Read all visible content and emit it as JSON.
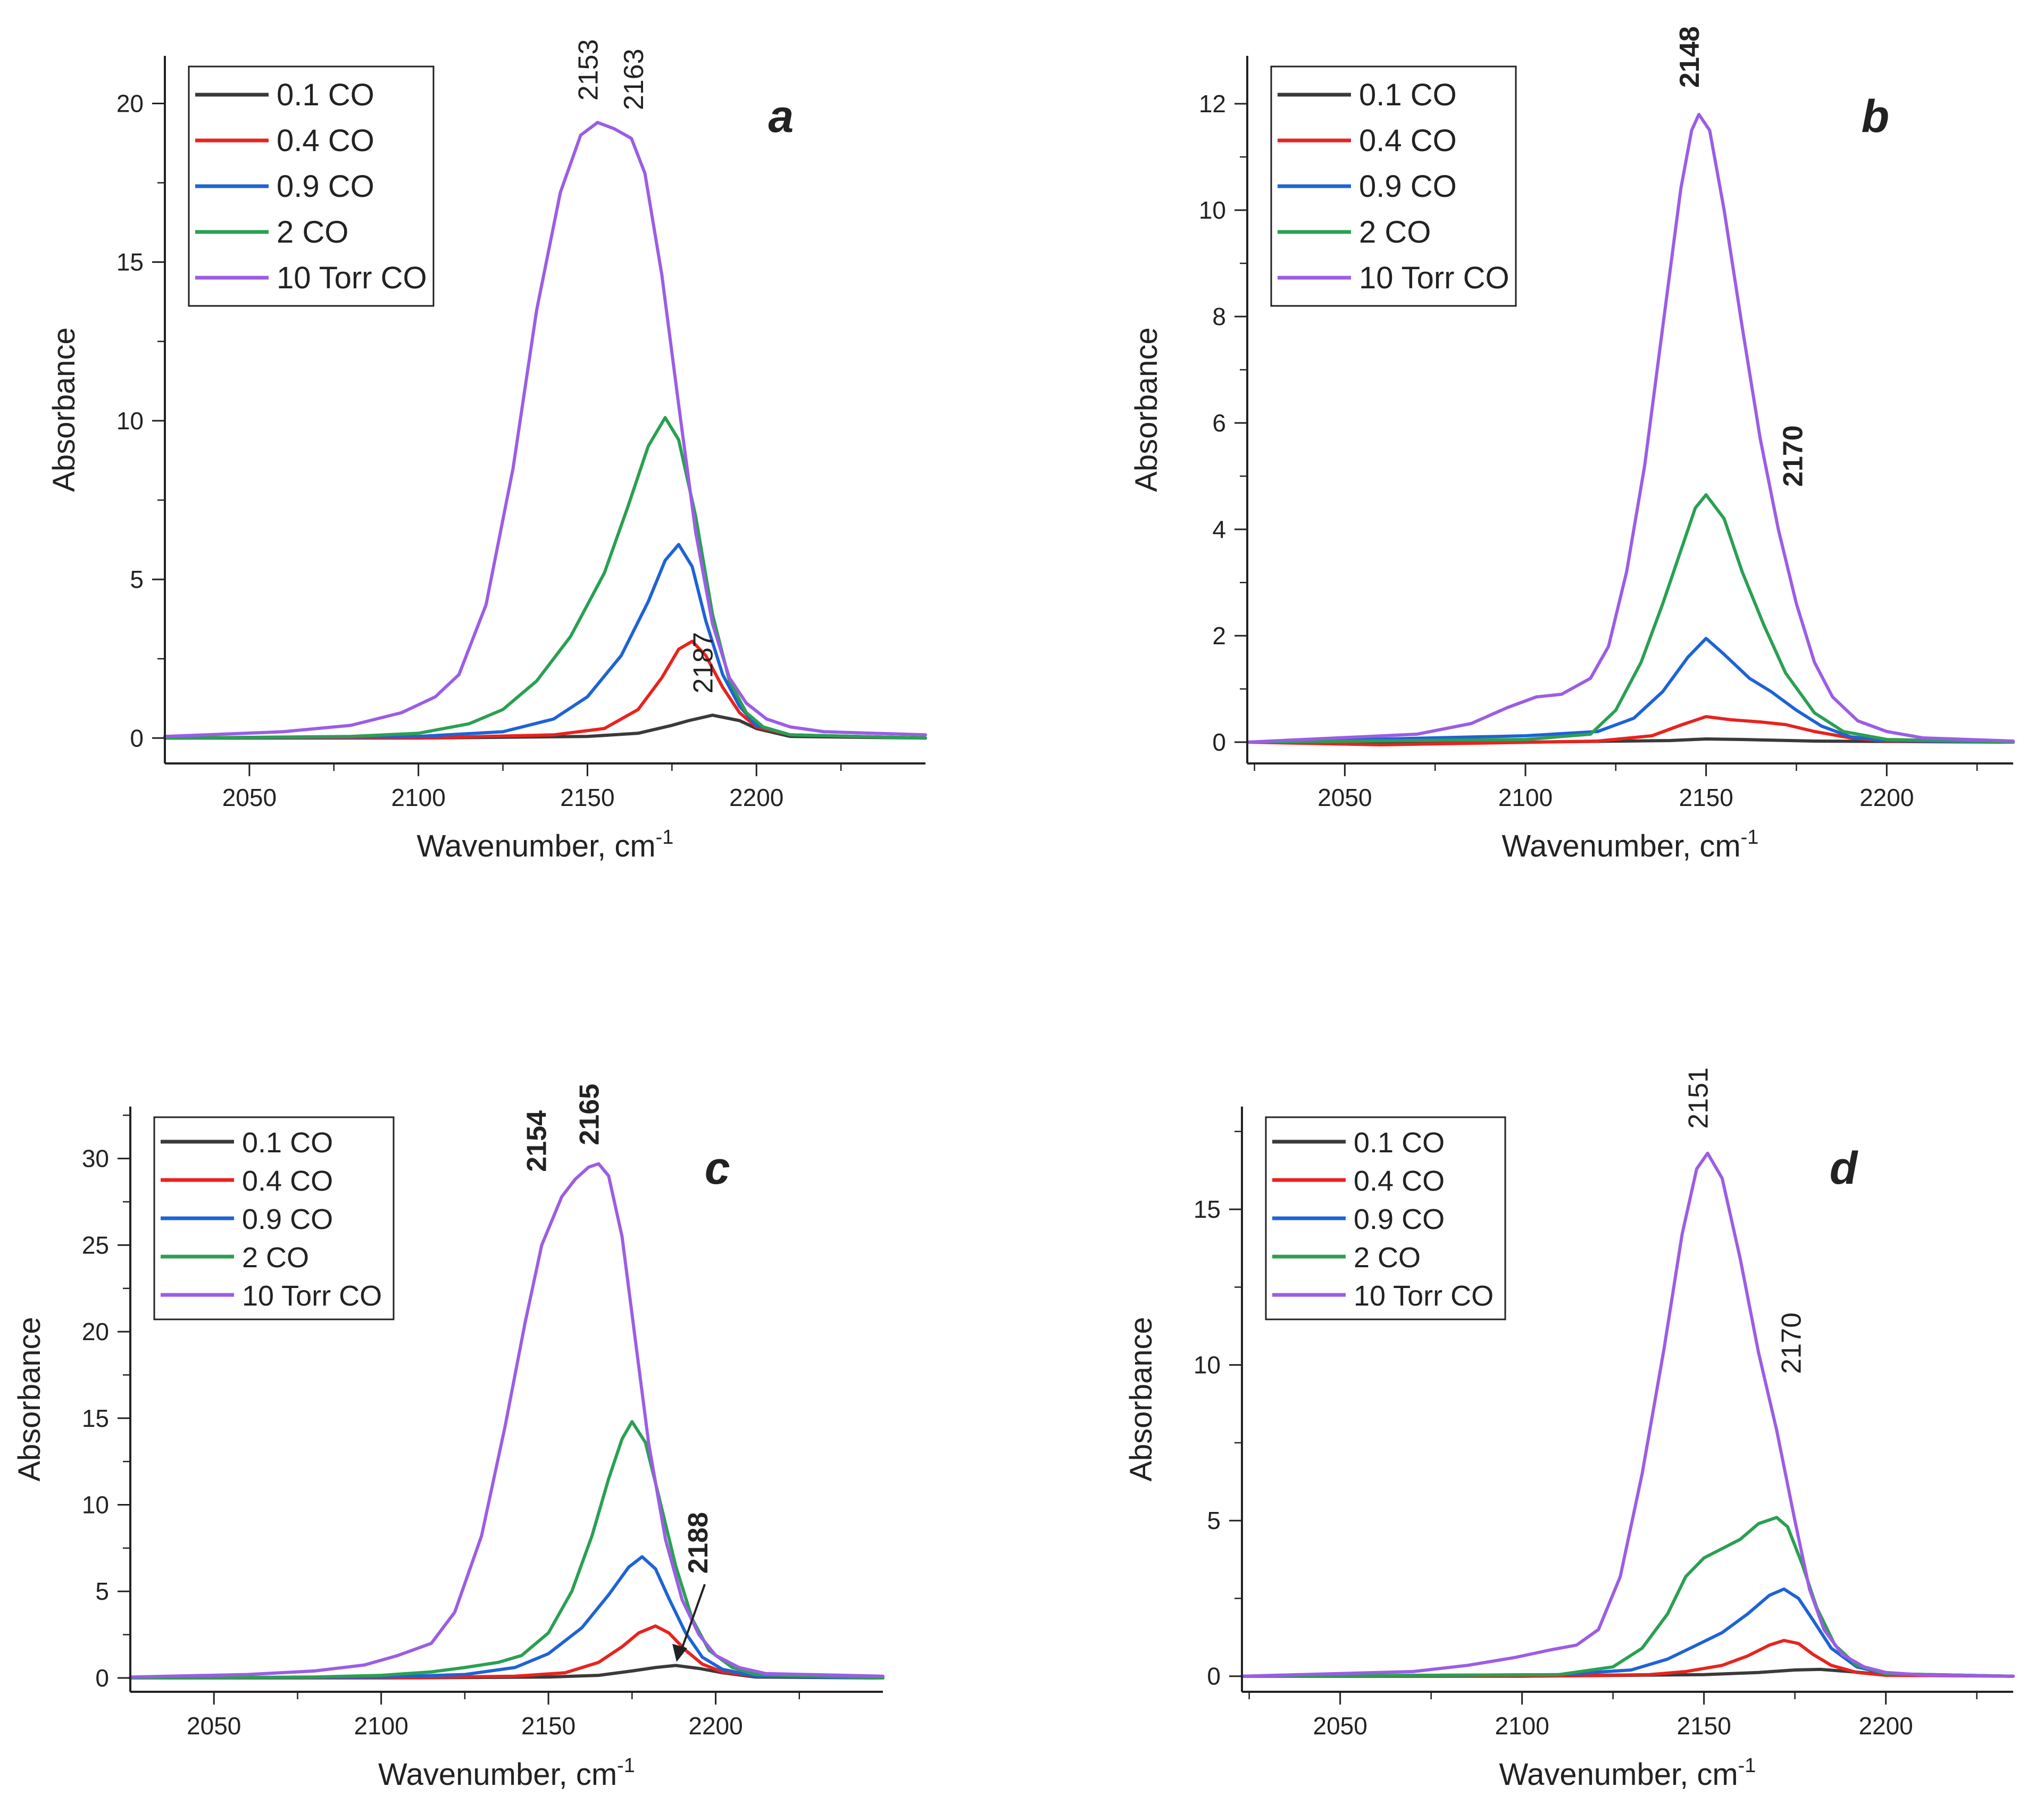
{
  "chart_data": [
    {
      "id": "a",
      "type": "line",
      "panel_label": "a",
      "xlabel": "Wavenumber, cm",
      "xlabel_sup": "-1",
      "ylabel": "Absorbance",
      "xlim": [
        2025,
        2250
      ],
      "ylim": [
        -0.8,
        21.5
      ],
      "xticks": [
        2050,
        2100,
        2150,
        2200
      ],
      "yticks": [
        0,
        5,
        10,
        15,
        20
      ],
      "legend": [
        "0.1 CO",
        "0.4 CO",
        "0.9 CO",
        "2 CO",
        "10 Torr CO"
      ],
      "series": [
        {
          "name": "0.1 CO",
          "color": "#3a3a3a",
          "x": [
            2025,
            2100,
            2150,
            2165,
            2175,
            2180,
            2187,
            2195,
            2200,
            2210,
            2250
          ],
          "y": [
            0,
            0,
            0.05,
            0.15,
            0.4,
            0.55,
            0.72,
            0.55,
            0.3,
            0.05,
            0
          ]
        },
        {
          "name": "0.4 CO",
          "color": "#e8231e",
          "x": [
            2025,
            2100,
            2140,
            2155,
            2165,
            2172,
            2177,
            2181,
            2185,
            2190,
            2195,
            2200,
            2210,
            2250
          ],
          "y": [
            0,
            0,
            0.1,
            0.3,
            0.9,
            1.9,
            2.8,
            3.05,
            2.6,
            1.6,
            0.8,
            0.35,
            0.1,
            0
          ]
        },
        {
          "name": "0.9 CO",
          "color": "#1e63d6",
          "x": [
            2025,
            2100,
            2125,
            2140,
            2150,
            2160,
            2168,
            2173,
            2177,
            2181,
            2185,
            2190,
            2195,
            2200,
            2210,
            2250
          ],
          "y": [
            0,
            0.05,
            0.2,
            0.6,
            1.3,
            2.6,
            4.3,
            5.6,
            6.1,
            5.4,
            3.7,
            2.0,
            1.0,
            0.4,
            0.1,
            0
          ]
        },
        {
          "name": "2 CO",
          "color": "#2aa052",
          "x": [
            2025,
            2080,
            2100,
            2115,
            2125,
            2135,
            2145,
            2155,
            2162,
            2168,
            2173,
            2177,
            2182,
            2187,
            2192,
            2197,
            2202,
            2210,
            2250
          ],
          "y": [
            0,
            0.05,
            0.15,
            0.45,
            0.9,
            1.8,
            3.2,
            5.2,
            7.3,
            9.2,
            10.1,
            9.4,
            7.0,
            3.9,
            1.8,
            0.8,
            0.35,
            0.1,
            0
          ]
        },
        {
          "name": "10 Torr CO",
          "color": "#9b5de5",
          "x": [
            2025,
            2060,
            2080,
            2095,
            2105,
            2112,
            2120,
            2128,
            2135,
            2142,
            2148,
            2153,
            2158,
            2163,
            2167,
            2172,
            2177,
            2182,
            2187,
            2192,
            2197,
            2203,
            2210,
            2220,
            2250
          ],
          "y": [
            0.05,
            0.2,
            0.4,
            0.8,
            1.3,
            2.0,
            4.2,
            8.5,
            13.5,
            17.2,
            19.0,
            19.4,
            19.2,
            18.9,
            17.8,
            14.6,
            10.5,
            6.5,
            3.6,
            1.9,
            1.1,
            0.6,
            0.35,
            0.2,
            0.1
          ]
        }
      ],
      "annotations": [
        {
          "text": "2153",
          "x": 2153,
          "y": 19.5
        },
        {
          "text": "2163",
          "x": 2163,
          "y": 19.2
        },
        {
          "text": "2187",
          "x": 2187,
          "y": 0.9
        }
      ]
    },
    {
      "id": "b",
      "type": "line",
      "panel_label": "b",
      "xlabel": "Wavenumber, cm",
      "xlabel_sup": "-1",
      "ylabel": "Absorbance",
      "xlim": [
        2023,
        2235
      ],
      "ylim": [
        -0.4,
        12.9
      ],
      "xticks": [
        2050,
        2100,
        2150,
        2200
      ],
      "yticks": [
        0,
        2,
        4,
        6,
        8,
        10,
        12
      ],
      "legend": [
        "0.1 CO",
        "0.4 CO",
        "0.9 CO",
        "2 CO",
        "10 Torr CO"
      ],
      "series": [
        {
          "name": "0.1 CO",
          "color": "#3a3a3a",
          "x": [
            2023,
            2100,
            2140,
            2150,
            2160,
            2180,
            2235
          ],
          "y": [
            0,
            0,
            0.03,
            0.06,
            0.05,
            0.02,
            0
          ]
        },
        {
          "name": "0.4 CO",
          "color": "#e8231e",
          "x": [
            2023,
            2060,
            2120,
            2135,
            2143,
            2150,
            2157,
            2165,
            2172,
            2180,
            2190,
            2200,
            2235
          ],
          "y": [
            0,
            -0.05,
            0.02,
            0.12,
            0.32,
            0.48,
            0.42,
            0.38,
            0.33,
            0.2,
            0.08,
            0.02,
            0
          ]
        },
        {
          "name": "0.9 CO",
          "color": "#1e63d6",
          "x": [
            2023,
            2100,
            2120,
            2130,
            2138,
            2145,
            2150,
            2155,
            2162,
            2168,
            2175,
            2182,
            2190,
            2200,
            2235
          ],
          "y": [
            0,
            0.12,
            0.2,
            0.45,
            0.95,
            1.6,
            1.95,
            1.65,
            1.2,
            0.95,
            0.6,
            0.3,
            0.1,
            0.03,
            0
          ]
        },
        {
          "name": "2 CO",
          "color": "#2aa052",
          "x": [
            2023,
            2100,
            2118,
            2125,
            2132,
            2138,
            2143,
            2147,
            2150,
            2155,
            2160,
            2166,
            2172,
            2180,
            2188,
            2200,
            2235
          ],
          "y": [
            0,
            0.05,
            0.15,
            0.6,
            1.5,
            2.6,
            3.6,
            4.4,
            4.65,
            4.2,
            3.2,
            2.2,
            1.3,
            0.55,
            0.2,
            0.05,
            0
          ]
        },
        {
          "name": "10 Torr CO",
          "color": "#9b5de5",
          "x": [
            2023,
            2070,
            2085,
            2095,
            2103,
            2110,
            2118,
            2123,
            2128,
            2133,
            2138,
            2143,
            2146,
            2148,
            2151,
            2155,
            2160,
            2165,
            2170,
            2175,
            2180,
            2185,
            2192,
            2200,
            2210,
            2235
          ],
          "y": [
            0,
            0.15,
            0.35,
            0.65,
            0.85,
            0.9,
            1.2,
            1.8,
            3.2,
            5.2,
            7.8,
            10.4,
            11.5,
            11.8,
            11.5,
            10.0,
            7.8,
            5.7,
            4.0,
            2.6,
            1.5,
            0.85,
            0.4,
            0.2,
            0.08,
            0.02
          ]
        }
      ],
      "annotations": [
        {
          "text": "2148",
          "x": 2148,
          "y": 11.9
        },
        {
          "text": "2170",
          "x": 2170,
          "y": 3.6
        }
      ]
    },
    {
      "id": "c",
      "type": "line",
      "panel_label": "c",
      "xlabel": "Wavenumber, cm",
      "xlabel_sup": "-1",
      "ylabel": "Absorbance",
      "xlim": [
        2025,
        2250
      ],
      "ylim": [
        -0.8,
        33
      ],
      "xticks": [
        2050,
        2100,
        2150,
        2200
      ],
      "yticks": [
        0,
        5,
        10,
        15,
        20,
        25,
        30
      ],
      "legend": [
        "0.1 CO",
        "0.4 CO",
        "0.9 CO",
        "2 CO",
        "10 Torr CO"
      ],
      "series": [
        {
          "name": "0.1 CO",
          "color": "#3a3a3a",
          "x": [
            2025,
            2100,
            2150,
            2165,
            2175,
            2182,
            2188,
            2195,
            2202,
            2212,
            2250
          ],
          "y": [
            0,
            0,
            0.05,
            0.15,
            0.4,
            0.6,
            0.72,
            0.55,
            0.3,
            0.05,
            0
          ]
        },
        {
          "name": "0.4 CO",
          "color": "#e8231e",
          "x": [
            2025,
            2100,
            2140,
            2155,
            2165,
            2172,
            2177,
            2182,
            2186,
            2191,
            2196,
            2202,
            2212,
            2250
          ],
          "y": [
            0,
            0,
            0.1,
            0.3,
            0.9,
            1.8,
            2.6,
            3.0,
            2.6,
            1.6,
            0.8,
            0.35,
            0.1,
            0
          ]
        },
        {
          "name": "0.9 CO",
          "color": "#1e63d6",
          "x": [
            2025,
            2100,
            2125,
            2140,
            2150,
            2160,
            2168,
            2174,
            2178,
            2182,
            2186,
            2191,
            2196,
            2202,
            2212,
            2250
          ],
          "y": [
            0,
            0.05,
            0.2,
            0.6,
            1.4,
            2.9,
            4.8,
            6.4,
            7.0,
            6.3,
            4.6,
            2.6,
            1.2,
            0.5,
            0.1,
            0
          ]
        },
        {
          "name": "2 CO",
          "color": "#2aa052",
          "x": [
            2025,
            2080,
            2100,
            2115,
            2125,
            2135,
            2142,
            2150,
            2157,
            2163,
            2168,
            2172,
            2175,
            2179,
            2183,
            2188,
            2193,
            2198,
            2205,
            2212,
            2250
          ],
          "y": [
            0,
            0.05,
            0.15,
            0.35,
            0.6,
            0.9,
            1.3,
            2.6,
            5.0,
            8.2,
            11.5,
            13.8,
            14.8,
            13.6,
            10.5,
            6.5,
            3.4,
            1.6,
            0.6,
            0.2,
            0
          ]
        },
        {
          "name": "10 Torr CO",
          "color": "#9b5de5",
          "x": [
            2025,
            2060,
            2080,
            2095,
            2105,
            2115,
            2122,
            2130,
            2137,
            2143,
            2148,
            2154,
            2158,
            2162,
            2165,
            2168,
            2172,
            2176,
            2180,
            2185,
            2190,
            2195,
            2200,
            2207,
            2215,
            2250
          ],
          "y": [
            0.05,
            0.2,
            0.4,
            0.75,
            1.3,
            2.0,
            3.8,
            8.2,
            14.5,
            20.5,
            25.0,
            27.8,
            28.8,
            29.5,
            29.7,
            29.0,
            25.5,
            19.5,
            13.5,
            8.0,
            4.5,
            2.5,
            1.3,
            0.6,
            0.25,
            0.1
          ]
        }
      ],
      "annotations": [
        {
          "text": "2154",
          "x": 2154,
          "y": 28
        },
        {
          "text": "2165",
          "x": 2165,
          "y": 30
        },
        {
          "text": "2188",
          "x": 2188,
          "y": 0.8
        }
      ]
    },
    {
      "id": "d",
      "type": "line",
      "panel_label": "d",
      "xlabel": "Wavenumber, cm",
      "xlabel_sup": "-1",
      "ylabel": "Absorbance",
      "xlim": [
        2023,
        2235
      ],
      "ylim": [
        -0.5,
        18.3
      ],
      "xticks": [
        2050,
        2100,
        2150,
        2200
      ],
      "yticks": [
        0,
        5,
        10,
        15
      ],
      "legend": [
        "0.1 CO",
        "0.4 CO",
        "0.9 CO",
        "2 CO",
        "10 Torr CO"
      ],
      "series": [
        {
          "name": "0.1 CO",
          "color": "#3a3a3a",
          "x": [
            2023,
            2100,
            2150,
            2165,
            2175,
            2182,
            2190,
            2200,
            2235
          ],
          "y": [
            0,
            0,
            0.05,
            0.12,
            0.2,
            0.22,
            0.15,
            0.05,
            0
          ]
        },
        {
          "name": "0.4 CO",
          "color": "#e8231e",
          "x": [
            2023,
            2100,
            2135,
            2145,
            2155,
            2162,
            2168,
            2172,
            2176,
            2180,
            2185,
            2192,
            2200,
            2235
          ],
          "y": [
            0,
            0,
            0.05,
            0.15,
            0.35,
            0.65,
            1.0,
            1.15,
            1.05,
            0.7,
            0.35,
            0.12,
            0.03,
            0
          ]
        },
        {
          "name": "0.9 CO",
          "color": "#1e63d6",
          "x": [
            2023,
            2110,
            2130,
            2140,
            2148,
            2155,
            2162,
            2168,
            2172,
            2176,
            2180,
            2185,
            2192,
            2200,
            2235
          ],
          "y": [
            0,
            0.05,
            0.2,
            0.55,
            1.0,
            1.4,
            2.0,
            2.6,
            2.8,
            2.5,
            1.8,
            0.9,
            0.3,
            0.08,
            0
          ]
        },
        {
          "name": "2 CO",
          "color": "#2aa052",
          "x": [
            2023,
            2110,
            2125,
            2133,
            2140,
            2145,
            2150,
            2155,
            2160,
            2165,
            2170,
            2173,
            2177,
            2181,
            2186,
            2192,
            2200,
            2235
          ],
          "y": [
            0,
            0.05,
            0.3,
            0.9,
            2.0,
            3.2,
            3.8,
            4.1,
            4.4,
            4.9,
            5.1,
            4.8,
            3.6,
            2.2,
            1.0,
            0.35,
            0.08,
            0
          ]
        },
        {
          "name": "10 Torr CO",
          "color": "#9b5de5",
          "x": [
            2023,
            2070,
            2085,
            2098,
            2108,
            2115,
            2121,
            2127,
            2133,
            2139,
            2144,
            2148,
            2151,
            2155,
            2160,
            2165,
            2170,
            2175,
            2179,
            2183,
            2188,
            2194,
            2200,
            2210,
            2235
          ],
          "y": [
            0,
            0.15,
            0.35,
            0.6,
            0.85,
            1.0,
            1.5,
            3.2,
            6.5,
            10.5,
            14.2,
            16.3,
            16.8,
            16.0,
            13.4,
            10.4,
            7.9,
            5.0,
            2.8,
            1.5,
            0.7,
            0.3,
            0.12,
            0.04,
            0
          ]
        }
      ],
      "annotations": [
        {
          "text": "2151",
          "x": 2151,
          "y": 16.9
        },
        {
          "text": "2170",
          "x": 2170,
          "y": 8.0
        }
      ]
    }
  ]
}
